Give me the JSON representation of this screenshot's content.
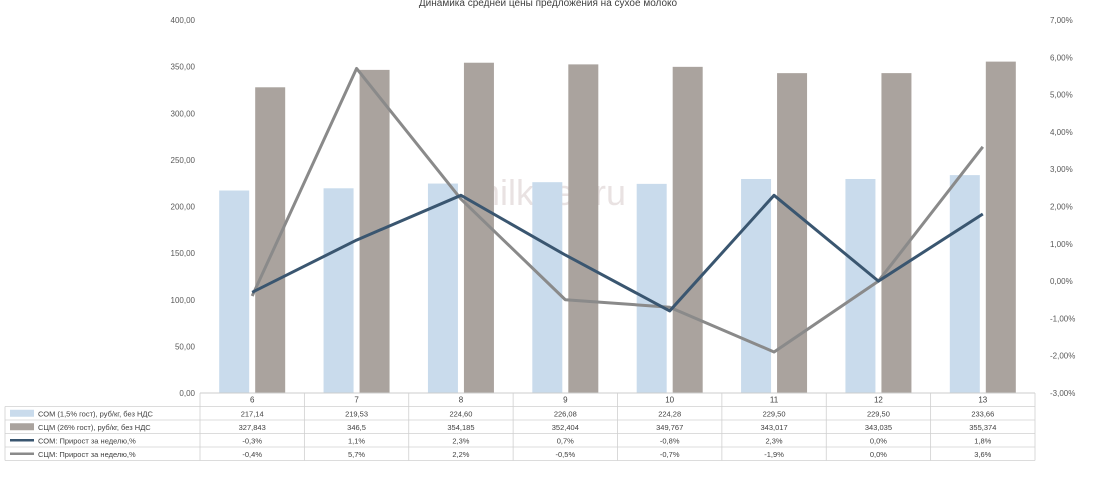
{
  "chart_data": {
    "type": "bar",
    "title": "Динамика средней цены предложения на сухое молоко",
    "watermark": "milknet.ru",
    "categories": [
      "6",
      "7",
      "8",
      "9",
      "10",
      "11",
      "12",
      "13"
    ],
    "y_left": {
      "range": [
        0,
        400
      ],
      "ticks": [
        "0,00",
        "50,00",
        "100,00",
        "150,00",
        "200,00",
        "250,00",
        "300,00",
        "350,00",
        "400,00"
      ]
    },
    "y_right": {
      "range": [
        -3,
        7
      ],
      "ticks": [
        "-3,00%",
        "-2,00%",
        "-1,00%",
        "0,00%",
        "1,00%",
        "2,00%",
        "3,00%",
        "4,00%",
        "5,00%",
        "6,00%",
        "7,00%"
      ]
    },
    "grid": false,
    "legend_placement": "table-left",
    "series": [
      {
        "name": "СОМ (1,5% гост), руб/кг, без НДС",
        "kind": "bar",
        "axis": "left",
        "color": "#c9dbec",
        "values": [
          217.14,
          219.53,
          224.6,
          226.08,
          224.28,
          229.5,
          229.5,
          233.66
        ],
        "labels": [
          "217,14",
          "219,53",
          "224,60",
          "226,08",
          "224,28",
          "229,50",
          "229,50",
          "233,66"
        ]
      },
      {
        "name": "СЦМ (26% гост), руб/кг, без НДС",
        "kind": "bar",
        "axis": "left",
        "color": "#aaa39e",
        "values": [
          327.843,
          346.5,
          354.185,
          352.404,
          349.767,
          343.017,
          343.035,
          355.374
        ],
        "labels": [
          "327,843",
          "346,5",
          "354,185",
          "352,404",
          "349,767",
          "343,017",
          "343,035",
          "355,374"
        ]
      },
      {
        "name": "СОМ: Прирост за неделю,%",
        "kind": "line",
        "axis": "right",
        "color": "#3a5670",
        "values": [
          -0.3,
          1.1,
          2.3,
          0.7,
          -0.8,
          2.3,
          0.0,
          1.8
        ],
        "labels": [
          "-0,3%",
          "1,1%",
          "2,3%",
          "0,7%",
          "-0,8%",
          "2,3%",
          "0,0%",
          "1,8%"
        ]
      },
      {
        "name": "СЦМ: Прирост за неделю,%",
        "kind": "line",
        "axis": "right",
        "color": "#8a8a8a",
        "values": [
          -0.4,
          5.7,
          2.2,
          -0.5,
          -0.7,
          -1.9,
          0.0,
          3.6
        ],
        "labels": [
          "-0,4%",
          "5,7%",
          "2,2%",
          "-0,5%",
          "-0,7%",
          "-1,9%",
          "0,0%",
          "3,6%"
        ]
      }
    ]
  }
}
